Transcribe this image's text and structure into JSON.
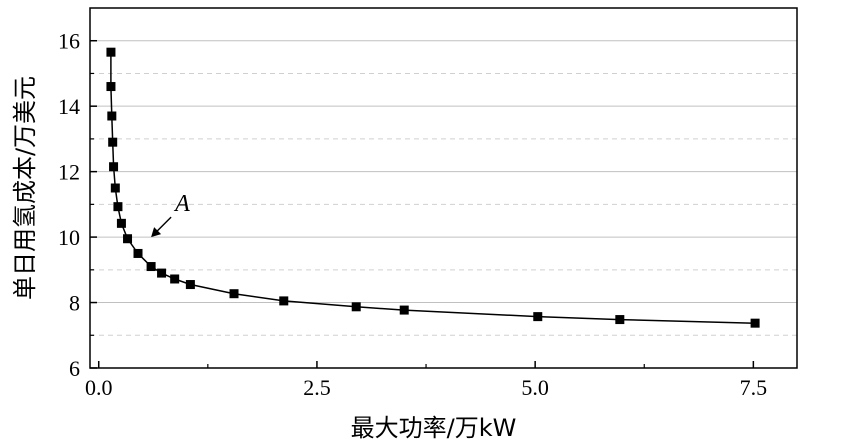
{
  "chart_data": {
    "type": "line",
    "xlabel": "最大功率/万kW",
    "ylabel": "单日用氢成本/万美元",
    "xlim": [
      -0.1,
      8.0
    ],
    "ylim": [
      6,
      17
    ],
    "x_ticks": [
      0.0,
      2.5,
      5.0,
      7.5
    ],
    "x_tick_labels": [
      "0.0",
      "2.5",
      "5.0",
      "7.5"
    ],
    "y_ticks": [
      6,
      8,
      10,
      12,
      14,
      16
    ],
    "y_tick_labels": [
      "6",
      "8",
      "10",
      "12",
      "14",
      "16"
    ],
    "grid": true,
    "series": [
      {
        "marker": "square",
        "color": "#000000",
        "points": [
          {
            "x": 0.14,
            "y": 15.65
          },
          {
            "x": 0.14,
            "y": 14.6
          },
          {
            "x": 0.15,
            "y": 13.7
          },
          {
            "x": 0.16,
            "y": 12.9
          },
          {
            "x": 0.17,
            "y": 12.15
          },
          {
            "x": 0.19,
            "y": 11.5
          },
          {
            "x": 0.22,
            "y": 10.93
          },
          {
            "x": 0.26,
            "y": 10.42
          },
          {
            "x": 0.33,
            "y": 9.95
          },
          {
            "x": 0.45,
            "y": 9.5
          },
          {
            "x": 0.6,
            "y": 9.1
          },
          {
            "x": 0.72,
            "y": 8.9
          },
          {
            "x": 0.87,
            "y": 8.72
          },
          {
            "x": 1.05,
            "y": 8.55
          },
          {
            "x": 1.55,
            "y": 8.27
          },
          {
            "x": 2.12,
            "y": 8.05
          },
          {
            "x": 2.95,
            "y": 7.87
          },
          {
            "x": 3.5,
            "y": 7.77
          },
          {
            "x": 5.03,
            "y": 7.57
          },
          {
            "x": 5.97,
            "y": 7.48
          },
          {
            "x": 7.52,
            "y": 7.37
          }
        ]
      }
    ],
    "annotations": [
      {
        "text": "A",
        "arrow_to": {
          "x": 0.6,
          "y": 10.0
        }
      }
    ]
  }
}
